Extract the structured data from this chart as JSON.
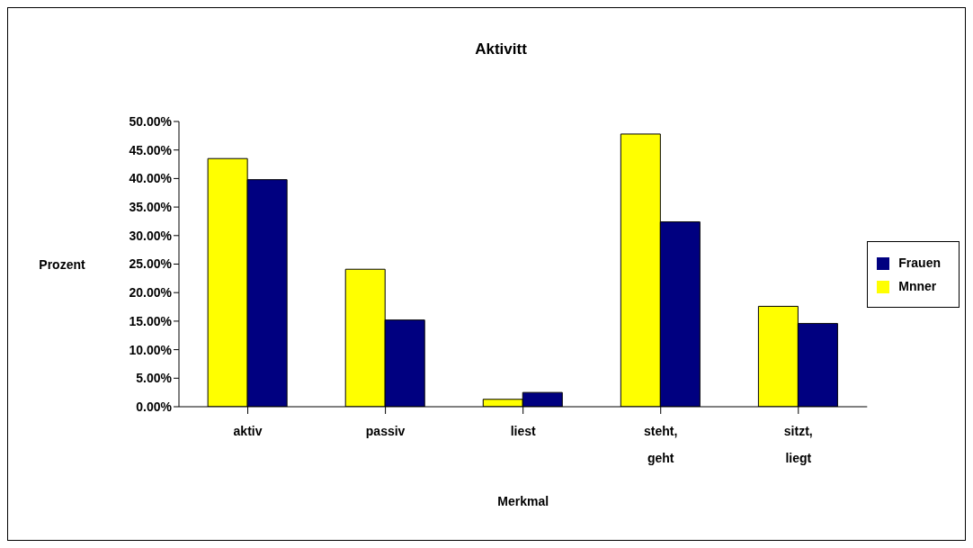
{
  "chart_data": {
    "type": "bar",
    "title": "Aktivitt",
    "xlabel": "Merkmal",
    "ylabel": "Prozent",
    "categories": [
      "aktiv",
      "passiv",
      "liest",
      "steht, geht",
      "sitzt, liegt"
    ],
    "series": [
      {
        "name": "Mnner",
        "color": "#ffff00",
        "values": [
          43.5,
          24.1,
          1.3,
          47.8,
          17.6
        ]
      },
      {
        "name": "Frauen",
        "color": "#000080",
        "values": [
          39.8,
          15.2,
          2.5,
          32.4,
          14.6
        ]
      }
    ],
    "ylim": [
      0,
      50
    ],
    "yticks": [
      {
        "value": 0,
        "label": "0.00%"
      },
      {
        "value": 5,
        "label": "5.00%"
      },
      {
        "value": 10,
        "label": "10.00%"
      },
      {
        "value": 15,
        "label": "15.00%"
      },
      {
        "value": 20,
        "label": "20.00%"
      },
      {
        "value": 25,
        "label": "25.00%"
      },
      {
        "value": 30,
        "label": "30.00%"
      },
      {
        "value": 35,
        "label": "35.00%"
      },
      {
        "value": 40,
        "label": "40.00%"
      },
      {
        "value": 45,
        "label": "45.00%"
      },
      {
        "value": 50,
        "label": "50.00%"
      }
    ],
    "grid": false,
    "legend": "right"
  }
}
